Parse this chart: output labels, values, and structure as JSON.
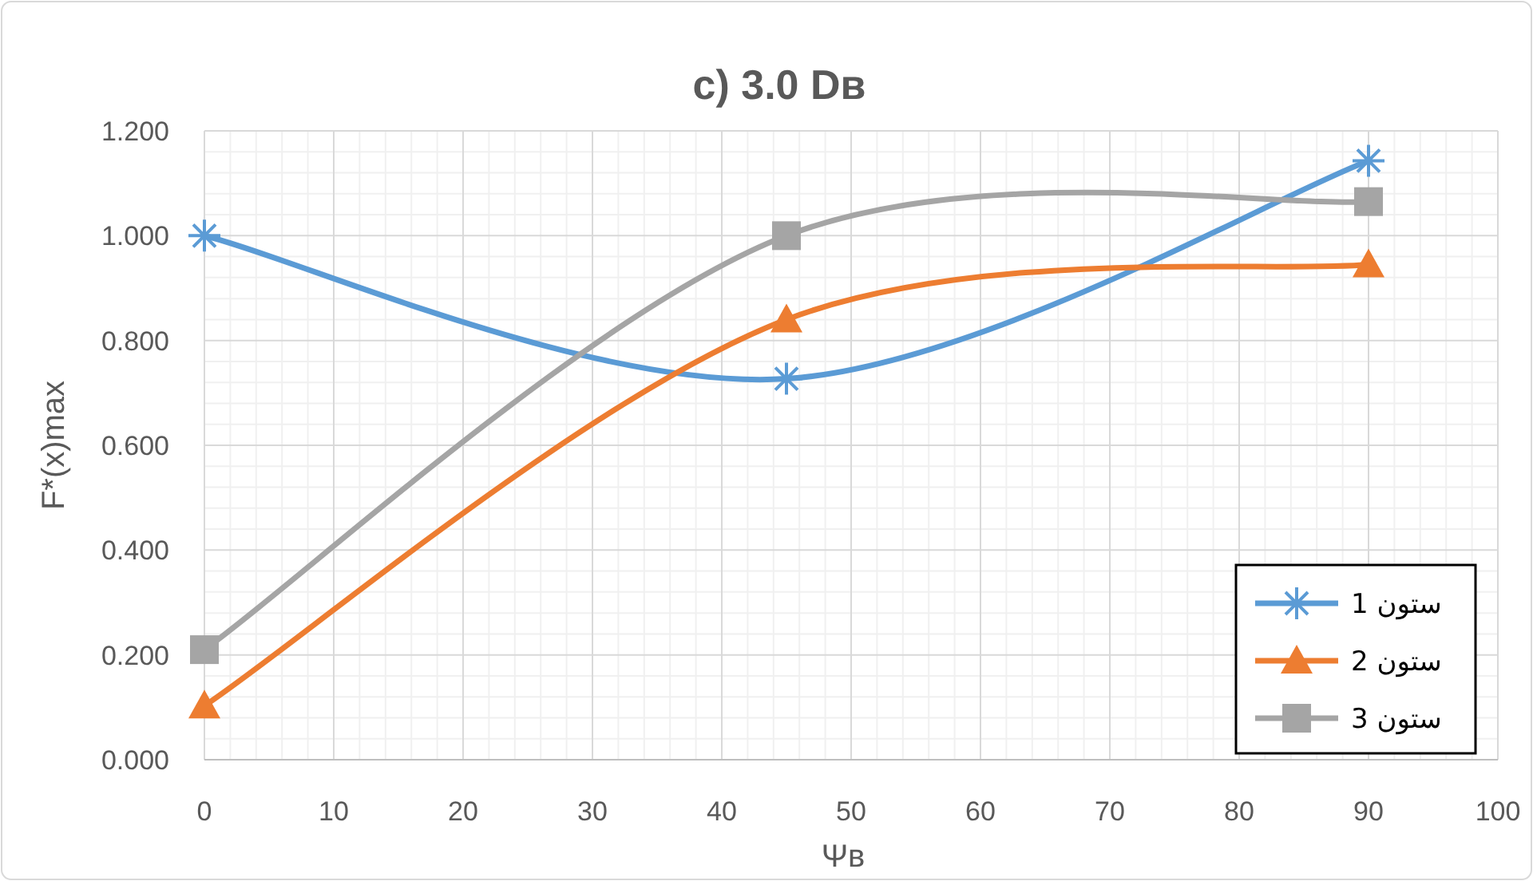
{
  "chart_data": {
    "type": "line",
    "title": "c) 3.0 Dʙ",
    "xlabel": "Ψʙ",
    "ylabel": "F*(x)max",
    "xlim": [
      0,
      100
    ],
    "xticks": [
      0,
      10,
      20,
      30,
      40,
      50,
      60,
      70,
      80,
      90,
      100
    ],
    "ylim": [
      0,
      1.2
    ],
    "yticks": [
      {
        "value": 0,
        "label": "0.000"
      },
      {
        "value": 0.2,
        "label": "0.200"
      },
      {
        "value": 0.4,
        "label": "0.400"
      },
      {
        "value": 0.6,
        "label": "0.600"
      },
      {
        "value": 0.8,
        "label": "0.800"
      },
      {
        "value": 1.0,
        "label": "1.000"
      },
      {
        "value": 1.2,
        "label": "1.200"
      }
    ],
    "grid": true,
    "legend": "bottom right",
    "line_style": "solid",
    "series": [
      {
        "name": "ستون 1",
        "color": "#5b9bd5",
        "marker": "cross",
        "x": [
          0,
          45,
          90
        ],
        "values": [
          1.0,
          0.727,
          1.143
        ]
      },
      {
        "name": "ستون 2",
        "color": "#ed7d31",
        "marker": "triangle",
        "x": [
          0,
          45,
          90
        ],
        "values": [
          0.103,
          0.84,
          0.945
        ]
      },
      {
        "name": "ستون 3",
        "color": "#a5a5a5",
        "marker": "square",
        "x": [
          0,
          45,
          90
        ],
        "values": [
          0.21,
          1.0,
          1.065
        ]
      }
    ]
  }
}
